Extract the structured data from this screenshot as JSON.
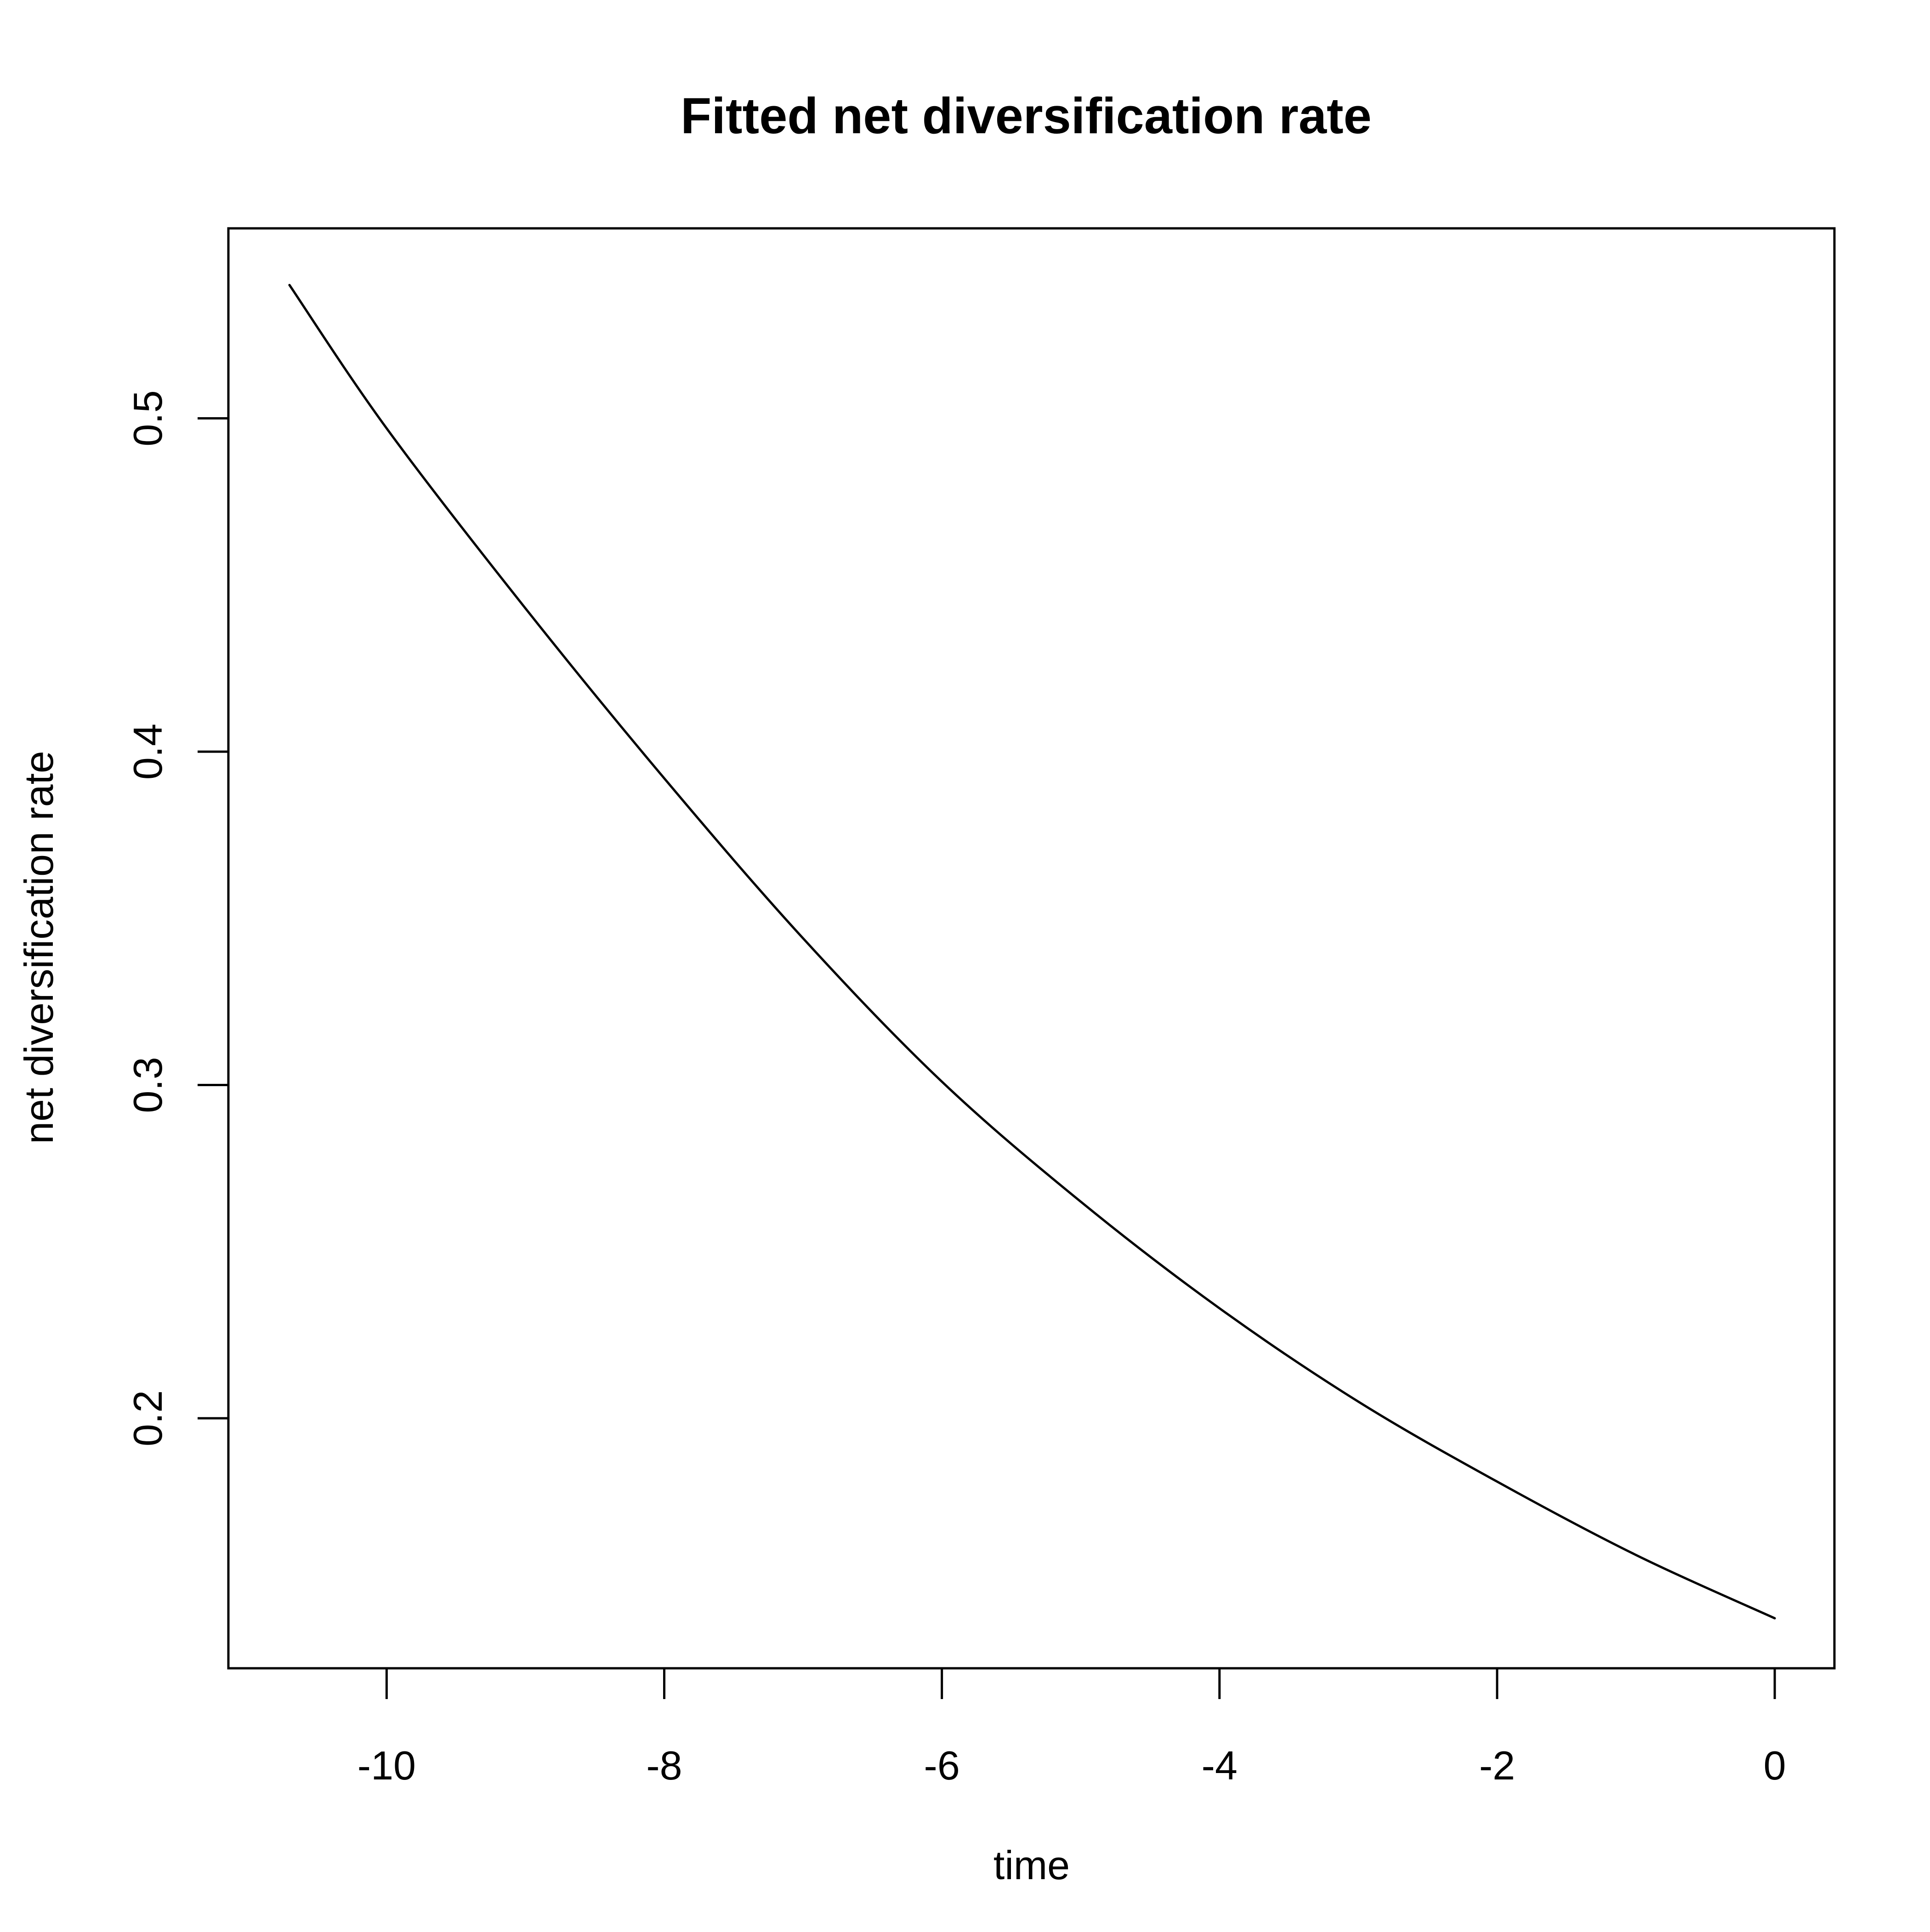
{
  "chart_data": {
    "type": "line",
    "title": "Fitted net diversification rate",
    "xlabel": "time",
    "ylabel": "net diversification rate",
    "xlim": [
      -11.14,
      0.43
    ],
    "ylim": [
      0.125,
      0.557
    ],
    "x_ticks": [
      -10,
      -8,
      -6,
      -4,
      -2,
      0
    ],
    "x_tick_labels": [
      "-10",
      "-8",
      "-6",
      "-4",
      "-2",
      "0"
    ],
    "y_ticks": [
      0.2,
      0.3,
      0.4,
      0.5
    ],
    "y_tick_labels": [
      "0.2",
      "0.3",
      "0.4",
      "0.5"
    ],
    "grid": false,
    "legend": "none",
    "series": [
      {
        "color": "#000000",
        "x": [
          -10.7,
          -10,
          -9,
          -8,
          -7,
          -6,
          -5,
          -4,
          -3,
          -2,
          -1,
          0
        ],
        "y": [
          0.54,
          0.497,
          0.443,
          0.392,
          0.344,
          0.301,
          0.265,
          0.233,
          0.205,
          0.181,
          0.159,
          0.14
        ]
      }
    ]
  }
}
